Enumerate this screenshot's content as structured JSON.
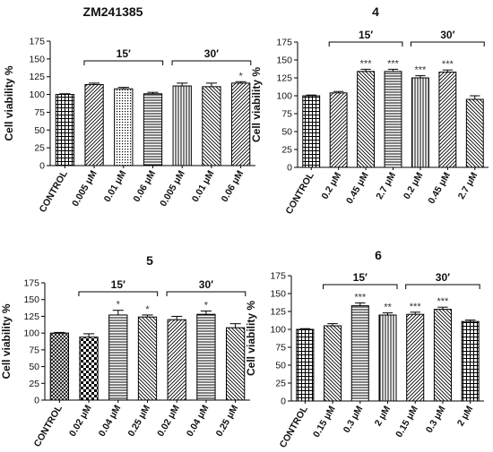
{
  "chart_data": [
    {
      "type": "bar",
      "title": "ZM241385",
      "ylabel": "Cell viability %",
      "ylim": [
        0,
        175
      ],
      "yticks": [
        0,
        25,
        50,
        75,
        100,
        125,
        150,
        175
      ],
      "categories": [
        "CONTROL",
        "0.005 μM",
        "0.01 μM",
        "0.06 μM",
        "0.005 μM",
        "0.01 μM",
        "0.06 μM"
      ],
      "values": [
        100,
        114,
        108,
        101,
        112,
        111,
        116
      ],
      "errors": [
        1,
        2,
        2,
        2,
        4,
        5,
        2
      ],
      "significance": [
        "",
        "",
        "",
        "",
        "",
        "",
        "*"
      ],
      "patterns": [
        "grid",
        "diag-r",
        "dots",
        "hlines",
        "vlines",
        "diag-l",
        "diag-r"
      ],
      "groups": [
        {
          "label": "15′",
          "from": 1,
          "to": 3
        },
        {
          "label": "30′",
          "from": 4,
          "to": 6
        }
      ]
    },
    {
      "type": "bar",
      "title": "4",
      "ylabel": "Cell viability %",
      "ylim": [
        0,
        175
      ],
      "yticks": [
        0,
        25,
        50,
        75,
        100,
        125,
        150,
        175
      ],
      "categories": [
        "CONTROL",
        "0.2 μM",
        "0.45 μM",
        "2.7 μM",
        "0.2 μM",
        "0.45 μM",
        "2.7 μM"
      ],
      "values": [
        100,
        104,
        134,
        134,
        125,
        133,
        95
      ],
      "errors": [
        1,
        2,
        3,
        3,
        3,
        3,
        5
      ],
      "significance": [
        "",
        "",
        "***",
        "***",
        "***",
        "***",
        ""
      ],
      "patterns": [
        "grid",
        "diag-r",
        "diag-l",
        "hlines",
        "vlines",
        "diag-r",
        "diag-l"
      ],
      "groups": [
        {
          "label": "15′",
          "from": 1,
          "to": 3
        },
        {
          "label": "30′",
          "from": 4,
          "to": 6
        }
      ]
    },
    {
      "type": "bar",
      "title": "5",
      "ylabel": "Cell viability %",
      "ylim": [
        0,
        175
      ],
      "yticks": [
        0,
        25,
        50,
        75,
        100,
        125,
        150,
        175
      ],
      "categories": [
        "CONTROL",
        "0.02 μM",
        "0.04 μM",
        "0.25 μM",
        "0.02 μM",
        "0.04 μM",
        "0.25 μM"
      ],
      "values": [
        100,
        94,
        127,
        124,
        120,
        128,
        108
      ],
      "errors": [
        1,
        5,
        7,
        3,
        5,
        5,
        6
      ],
      "significance": [
        "",
        "",
        "*",
        "*",
        "",
        "*",
        ""
      ],
      "patterns": [
        "cross",
        "checker",
        "hlines",
        "diag-l",
        "diag-r",
        "hlines",
        "diag-l"
      ],
      "groups": [
        {
          "label": "15′",
          "from": 1,
          "to": 3
        },
        {
          "label": "30′",
          "from": 4,
          "to": 6
        }
      ]
    },
    {
      "type": "bar",
      "title": "6",
      "ylabel": "Cell viability %",
      "ylim": [
        0,
        175
      ],
      "yticks": [
        0,
        25,
        50,
        75,
        100,
        125,
        150,
        175
      ],
      "categories": [
        "CONTROL",
        "0.15 μM",
        "0.3 μM",
        "2 μM",
        "0.15 μM",
        "0.3 μM",
        "2 μM"
      ],
      "values": [
        100,
        105,
        133,
        120,
        121,
        128,
        111
      ],
      "errors": [
        1,
        3,
        4,
        3,
        3,
        3,
        2
      ],
      "significance": [
        "",
        "",
        "***",
        "**",
        "***",
        "***",
        ""
      ],
      "patterns": [
        "grid",
        "diag-l",
        "hlines",
        "vlines",
        "diag-r",
        "diag-l",
        "grid"
      ],
      "groups": [
        {
          "label": "15′",
          "from": 1,
          "to": 3
        },
        {
          "label": "30′",
          "from": 4,
          "to": 6
        }
      ]
    }
  ]
}
